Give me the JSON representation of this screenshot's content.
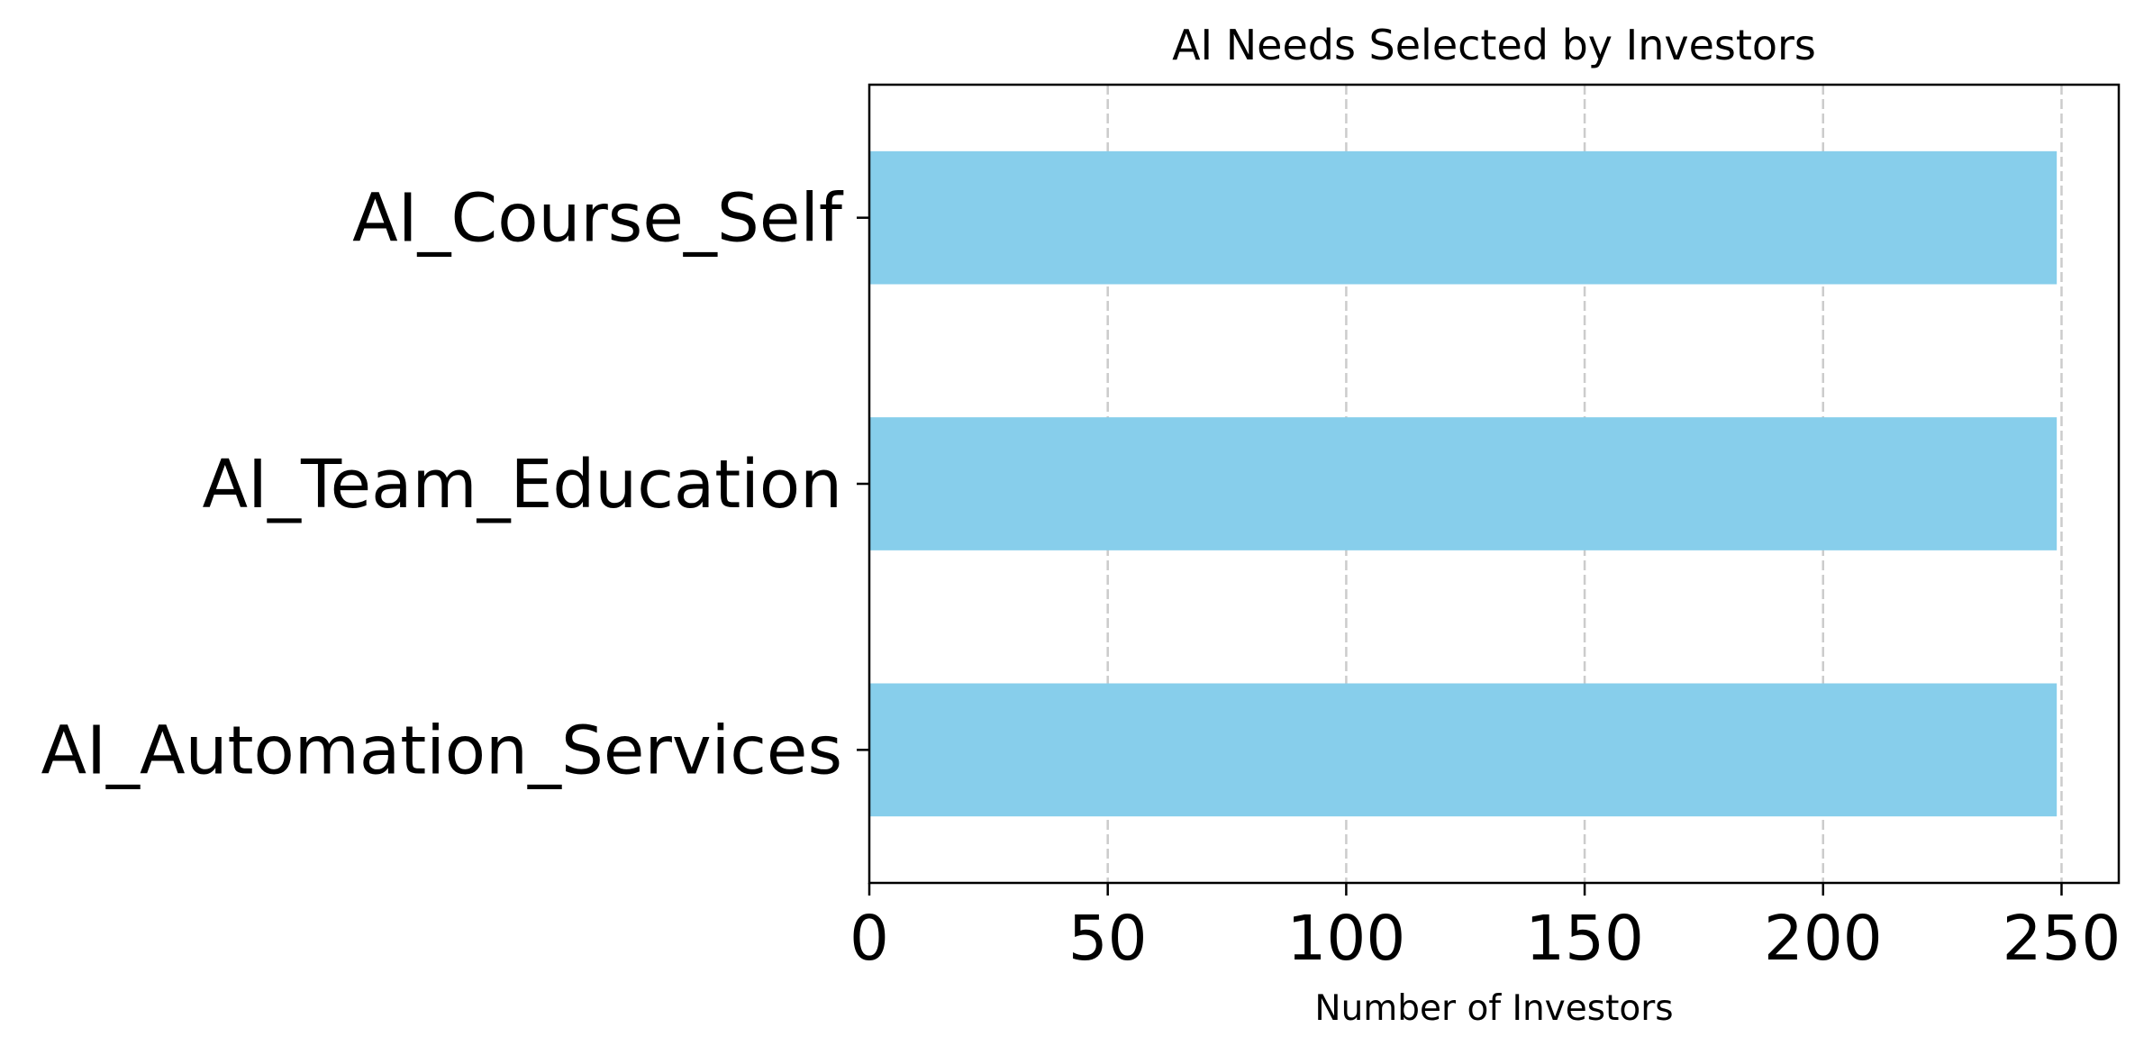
{
  "chart_data": {
    "type": "bar",
    "orientation": "horizontal",
    "title": "AI Needs Selected by Investors",
    "xlabel": "Number of Investors",
    "ylabel": "",
    "categories": [
      "AI_Course_Self",
      "AI_Team_Education",
      "AI_Automation_Services"
    ],
    "values": [
      249,
      249,
      249
    ],
    "xlim": [
      0,
      262
    ],
    "xticks": [
      0,
      50,
      100,
      150,
      200,
      250
    ],
    "grid": {
      "x": true,
      "y": false,
      "style": "dashed"
    },
    "bar_color": "#87CEEB",
    "grid_color": "#cccccc",
    "legend": "none"
  }
}
